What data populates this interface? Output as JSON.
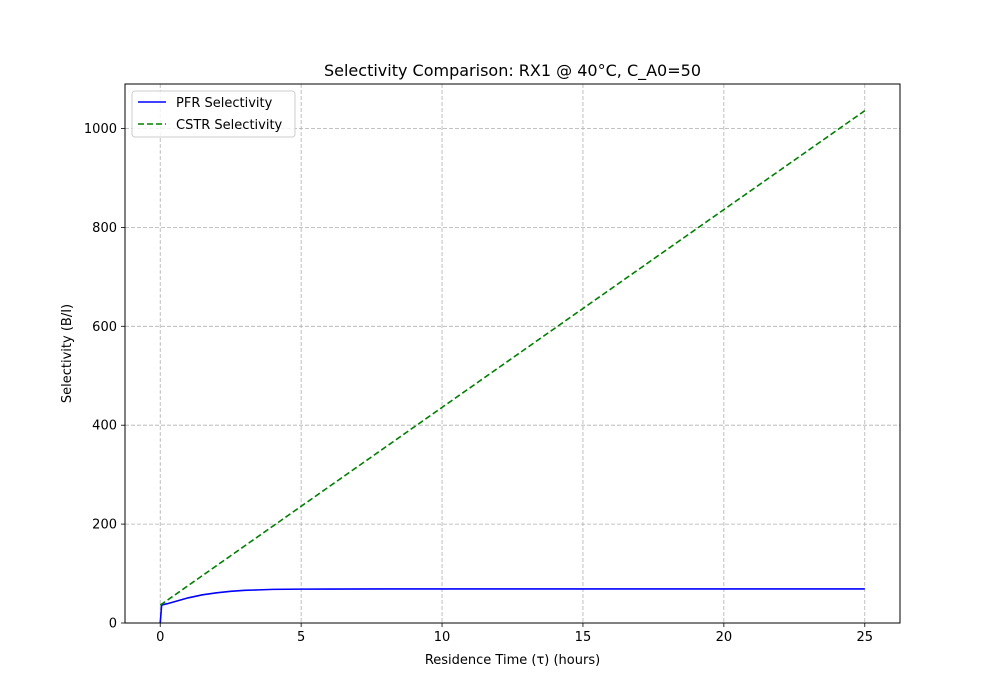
{
  "chart_data": {
    "type": "line",
    "title": "Selectivity Comparison: RX1 @ 40°C, C_A0=50",
    "xlabel": "Residence Time (τ) (hours)",
    "ylabel": "Selectivity (B/I)",
    "xlim": [
      -1.25,
      26.25
    ],
    "ylim": [
      0,
      1090
    ],
    "xticks": [
      0,
      5,
      10,
      15,
      20,
      25
    ],
    "yticks": [
      0,
      200,
      400,
      600,
      800,
      1000
    ],
    "grid": true,
    "grid_style": "dashed",
    "legend_position": "upper-left",
    "series": [
      {
        "name": "PFR Selectivity",
        "color": "#0000ff",
        "dash": "solid",
        "x": [
          0,
          0.05,
          0.1,
          0.25,
          0.5,
          0.75,
          1,
          1.25,
          1.5,
          2,
          2.5,
          3,
          3.5,
          4,
          5,
          6,
          8,
          10,
          15,
          20,
          25
        ],
        "y": [
          0,
          36,
          37,
          39,
          43,
          47,
          51,
          54,
          57,
          61,
          64,
          66,
          67,
          68,
          68.5,
          68.7,
          68.8,
          68.8,
          68.8,
          68.8,
          68.8
        ]
      },
      {
        "name": "CSTR Selectivity",
        "color": "#008000",
        "dash": "dashed",
        "x": [
          0,
          25
        ],
        "y": [
          36,
          1036
        ]
      }
    ]
  }
}
